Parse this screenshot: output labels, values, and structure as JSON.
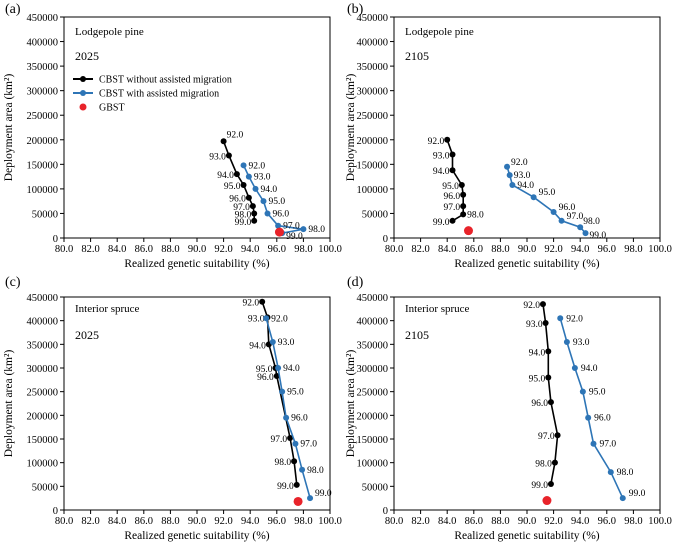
{
  "chart_data": [
    {
      "type": "line",
      "panel_label": "(a)",
      "species": "Lodgepole pine",
      "year": "2025",
      "xlabel": "Realized genetic suitability (%)",
      "ylabel": "Deployment area (km²)",
      "xlim": [
        80,
        100
      ],
      "ylim": [
        0,
        450000
      ],
      "xticks": [
        "80.0",
        "82.0",
        "84.0",
        "86.0",
        "88.0",
        "90.0",
        "92.0",
        "94.0",
        "96.0",
        "98.0",
        "100.0"
      ],
      "yticks": [
        "0",
        "50000",
        "100000",
        "150000",
        "200000",
        "250000",
        "300000",
        "350000",
        "400000",
        "450000"
      ],
      "legend": [
        "CBST without assisted migration",
        "CBST with assisted migration",
        "GBST"
      ],
      "series": [
        {
          "name": "CBST without assisted migration",
          "color": "#000000",
          "points": [
            {
              "x": 92.0,
              "y": 197000,
              "label": "92.0"
            },
            {
              "x": 92.4,
              "y": 168000,
              "label": "93.0"
            },
            {
              "x": 93.0,
              "y": 130000,
              "label": "94.0"
            },
            {
              "x": 93.5,
              "y": 108000,
              "label": "95.0"
            },
            {
              "x": 93.9,
              "y": 82000,
              "label": "96.0"
            },
            {
              "x": 94.2,
              "y": 65000,
              "label": "97.0"
            },
            {
              "x": 94.3,
              "y": 50000,
              "label": "98.0"
            },
            {
              "x": 94.3,
              "y": 35000,
              "label": "99.0"
            }
          ]
        },
        {
          "name": "CBST with assisted migration",
          "color": "#2e75b6",
          "points": [
            {
              "x": 93.5,
              "y": 148000,
              "label": "92.0"
            },
            {
              "x": 93.9,
              "y": 125000,
              "label": "93.0"
            },
            {
              "x": 94.4,
              "y": 100000,
              "label": "94.0"
            },
            {
              "x": 95.0,
              "y": 75000,
              "label": "95.0"
            },
            {
              "x": 95.3,
              "y": 50000,
              "label": "96.0"
            },
            {
              "x": 96.1,
              "y": 25000,
              "label": "97.0"
            },
            {
              "x": 98.0,
              "y": 18000,
              "label": "98.0"
            },
            {
              "x": 96.4,
              "y": 10000,
              "label": "99.0"
            }
          ]
        },
        {
          "name": "GBST",
          "color": "#e8232a",
          "points": [
            {
              "x": 96.2,
              "y": 12000
            }
          ]
        }
      ]
    },
    {
      "type": "line",
      "panel_label": "(b)",
      "species": "Lodgepole pine",
      "year": "2105",
      "xlabel": "Realized genetic suitability (%)",
      "ylabel": "Deployment area (km²)",
      "xlim": [
        80,
        100
      ],
      "ylim": [
        0,
        450000
      ],
      "xticks": [
        "80.0",
        "82.0",
        "84.0",
        "86.0",
        "88.0",
        "90.0",
        "92.0",
        "94.0",
        "96.0",
        "98.0",
        "100.0"
      ],
      "yticks": [
        "0",
        "50000",
        "100000",
        "150000",
        "200000",
        "250000",
        "300000",
        "350000",
        "400000",
        "450000"
      ],
      "series": [
        {
          "name": "CBST without assisted migration",
          "color": "#000000",
          "points": [
            {
              "x": 84.0,
              "y": 200000,
              "label": "92.0"
            },
            {
              "x": 84.4,
              "y": 170000,
              "label": "93.0"
            },
            {
              "x": 84.4,
              "y": 138000,
              "label": "94.0"
            },
            {
              "x": 85.1,
              "y": 108000,
              "label": "95.0"
            },
            {
              "x": 85.2,
              "y": 88000,
              "label": "96.0"
            },
            {
              "x": 85.2,
              "y": 65000,
              "label": "97.0"
            },
            {
              "x": 85.2,
              "y": 48000,
              "label": "98.0"
            },
            {
              "x": 84.4,
              "y": 35000,
              "label": "99.0"
            }
          ]
        },
        {
          "name": "CBST with assisted migration",
          "color": "#2e75b6",
          "points": [
            {
              "x": 88.5,
              "y": 145000,
              "label": "92.0"
            },
            {
              "x": 88.7,
              "y": 128000,
              "label": "93.0"
            },
            {
              "x": 88.9,
              "y": 108000,
              "label": "94.0"
            },
            {
              "x": 90.5,
              "y": 83000,
              "label": "95.0"
            },
            {
              "x": 92.0,
              "y": 53000,
              "label": "96.0"
            },
            {
              "x": 92.6,
              "y": 35000,
              "label": "97.0"
            },
            {
              "x": 94.0,
              "y": 22000,
              "label": "98.0"
            },
            {
              "x": 94.4,
              "y": 10000,
              "label": "99.0"
            }
          ]
        },
        {
          "name": "GBST",
          "color": "#e8232a",
          "points": [
            {
              "x": 85.6,
              "y": 15000
            }
          ]
        }
      ]
    },
    {
      "type": "line",
      "panel_label": "(c)",
      "species": "Interior spruce",
      "year": "2025",
      "xlabel": "Realized genetic suitability (%)",
      "ylabel": "Deployment area (km²)",
      "xlim": [
        80,
        100
      ],
      "ylim": [
        0,
        450000
      ],
      "xticks": [
        "80.0",
        "82.0",
        "84.0",
        "86.0",
        "88.0",
        "90.0",
        "92.0",
        "94.0",
        "96.0",
        "98.0",
        "100.0"
      ],
      "yticks": [
        "0",
        "50000",
        "100000",
        "150000",
        "200000",
        "250000",
        "300000",
        "350000",
        "400000",
        "450000"
      ],
      "series": [
        {
          "name": "CBST without assisted migration",
          "color": "#000000",
          "points": [
            {
              "x": 94.9,
              "y": 440000,
              "label": "92.0"
            },
            {
              "x": 95.3,
              "y": 407000,
              "label": "93.0"
            },
            {
              "x": 95.4,
              "y": 350000,
              "label": "94.0"
            },
            {
              "x": 95.9,
              "y": 300000,
              "label": "95.0"
            },
            {
              "x": 96.0,
              "y": 283000,
              "label": "96.0"
            },
            {
              "x": 97.0,
              "y": 152000,
              "label": "97.0"
            },
            {
              "x": 97.3,
              "y": 103000,
              "label": "98.0"
            },
            {
              "x": 97.5,
              "y": 53000,
              "label": "99.0"
            }
          ]
        },
        {
          "name": "CBST with assisted migration",
          "color": "#2e75b6",
          "points": [
            {
              "x": 95.2,
              "y": 405000,
              "label": "92.0"
            },
            {
              "x": 95.7,
              "y": 355000,
              "label": "93.0"
            },
            {
              "x": 96.1,
              "y": 300000,
              "label": "94.0"
            },
            {
              "x": 96.4,
              "y": 250000,
              "label": "95.0"
            },
            {
              "x": 96.7,
              "y": 195000,
              "label": "96.0"
            },
            {
              "x": 97.4,
              "y": 140000,
              "label": "97.0"
            },
            {
              "x": 97.9,
              "y": 85000,
              "label": "98.0"
            },
            {
              "x": 98.5,
              "y": 25000,
              "label": "99.0"
            }
          ]
        },
        {
          "name": "GBST",
          "color": "#e8232a",
          "points": [
            {
              "x": 97.6,
              "y": 18000
            }
          ]
        }
      ]
    },
    {
      "type": "line",
      "panel_label": "(d)",
      "species": "Interior spruce",
      "year": "2105",
      "xlabel": "Realized genetic suitability (%)",
      "ylabel": "Deployment area (km²)",
      "xlim": [
        80,
        100
      ],
      "ylim": [
        0,
        450000
      ],
      "xticks": [
        "80.0",
        "82.0",
        "84.0",
        "86.0",
        "88.0",
        "90.0",
        "92.0",
        "94.0",
        "96.0",
        "98.0",
        "100.0"
      ],
      "yticks": [
        "0",
        "50000",
        "100000",
        "150000",
        "200000",
        "250000",
        "300000",
        "350000",
        "400000",
        "450000"
      ],
      "series": [
        {
          "name": "CBST without assisted migration",
          "color": "#000000",
          "points": [
            {
              "x": 91.2,
              "y": 435000,
              "label": "92.0"
            },
            {
              "x": 91.4,
              "y": 395000,
              "label": "93.0"
            },
            {
              "x": 91.6,
              "y": 335000,
              "label": "94.0"
            },
            {
              "x": 91.6,
              "y": 280000,
              "label": "95.0"
            },
            {
              "x": 91.8,
              "y": 228000,
              "label": "96.0"
            },
            {
              "x": 92.3,
              "y": 158000,
              "label": "97.0"
            },
            {
              "x": 92.1,
              "y": 100000,
              "label": "98.0"
            },
            {
              "x": 91.8,
              "y": 55000,
              "label": "99.0"
            }
          ]
        },
        {
          "name": "CBST with assisted migration",
          "color": "#2e75b6",
          "points": [
            {
              "x": 92.5,
              "y": 405000,
              "label": "92.0"
            },
            {
              "x": 93.0,
              "y": 355000,
              "label": "93.0"
            },
            {
              "x": 93.6,
              "y": 300000,
              "label": "94.0"
            },
            {
              "x": 94.2,
              "y": 250000,
              "label": "95.0"
            },
            {
              "x": 94.6,
              "y": 195000,
              "label": "96.0"
            },
            {
              "x": 95.0,
              "y": 140000,
              "label": "97.0"
            },
            {
              "x": 96.3,
              "y": 80000,
              "label": "98.0"
            },
            {
              "x": 97.2,
              "y": 25000,
              "label": "99.0"
            }
          ]
        },
        {
          "name": "GBST",
          "color": "#e8232a",
          "points": [
            {
              "x": 91.5,
              "y": 20000
            }
          ]
        }
      ]
    }
  ]
}
